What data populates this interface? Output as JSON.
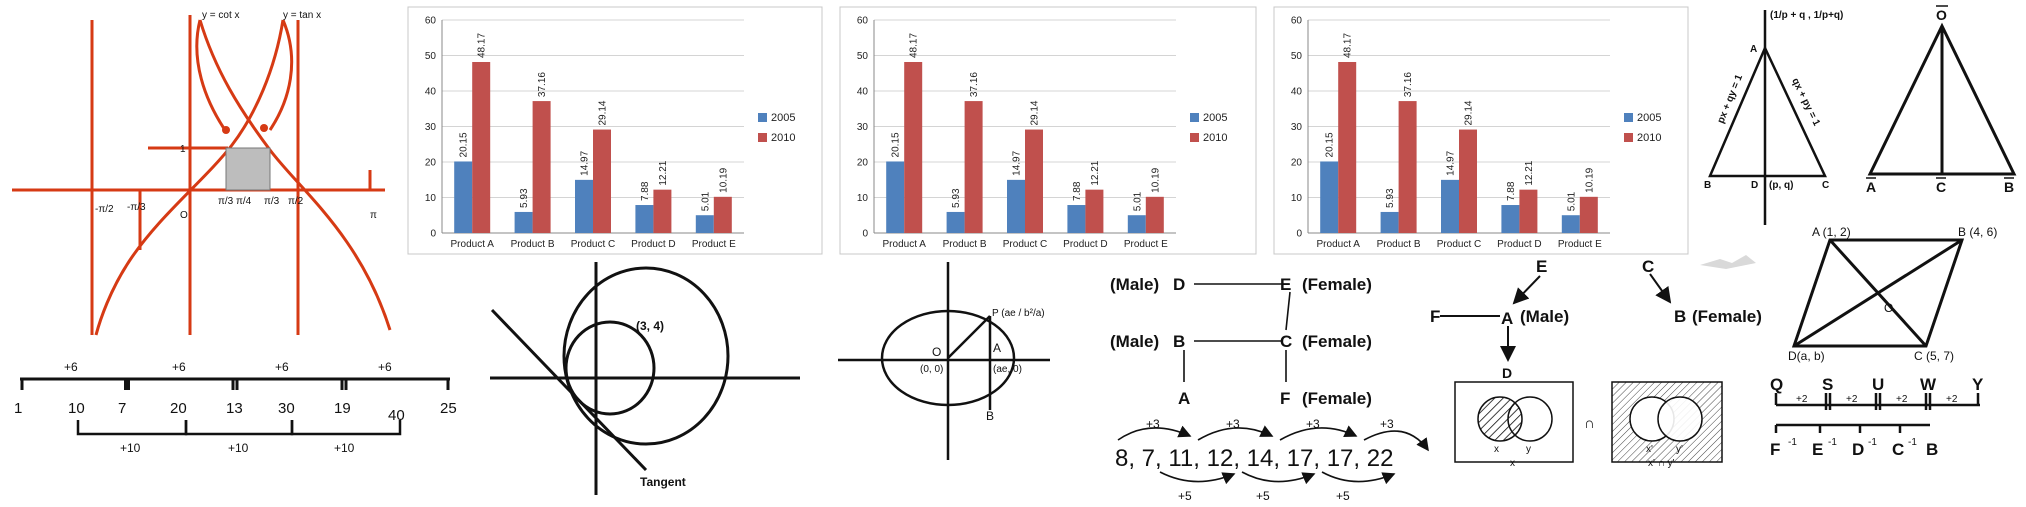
{
  "trig": {
    "label_cot": "y = cot x",
    "label_tan": "y = tan x",
    "one": "1",
    "origin": "O",
    "neg_pi2": "-π/2",
    "neg_pi3": "-π/3",
    "pi3a": "π/3",
    "pi4": "π/4",
    "pi3b": "π/3",
    "pi2": "π/2",
    "pi": "π"
  },
  "number_line": {
    "top_steps": [
      "+6",
      "+6",
      "+6",
      "+6"
    ],
    "numbers": [
      "1",
      "10",
      "7",
      "20",
      "13",
      "30",
      "19",
      "40",
      "25"
    ],
    "bottom_steps": [
      "+10",
      "+10",
      "+10"
    ]
  },
  "charts": [
    {
      "chart_data": {
        "type": "bar",
        "categories": [
          "Product A",
          "Product B",
          "Product C",
          "Product D",
          "Product E"
        ],
        "series": [
          {
            "name": "2005",
            "values": [
              20.15,
              5.93,
              14.97,
              7.88,
              5.01
            ]
          },
          {
            "name": "2010",
            "values": [
              48.17,
              37.16,
              29.14,
              12.21,
              10.19
            ]
          }
        ],
        "ylim": [
          0,
          60
        ],
        "yticks": [
          0,
          10,
          20,
          30,
          40,
          50,
          60
        ],
        "grid": true,
        "legend": "right",
        "colors": {
          "2005": "#4f81bd",
          "2010": "#c0504d"
        }
      }
    },
    {
      "chart_data": {
        "type": "bar",
        "categories": [
          "Product A",
          "Product B",
          "Product C",
          "Product D",
          "Product E"
        ],
        "series": [
          {
            "name": "2005",
            "values": [
              20.15,
              5.93,
              14.97,
              7.88,
              5.01
            ]
          },
          {
            "name": "2010",
            "values": [
              48.17,
              37.16,
              29.14,
              12.21,
              10.19
            ]
          }
        ],
        "ylim": [
          0,
          60
        ],
        "yticks": [
          0,
          10,
          20,
          30,
          40,
          50,
          60
        ],
        "grid": true,
        "legend": "right",
        "colors": {
          "2005": "#4f81bd",
          "2010": "#c0504d"
        }
      }
    },
    {
      "chart_data": {
        "type": "bar",
        "categories": [
          "Product A",
          "Product B",
          "Product C",
          "Product D",
          "Product E"
        ],
        "series": [
          {
            "name": "2005",
            "values": [
              20.15,
              5.93,
              14.97,
              7.88,
              5.01
            ]
          },
          {
            "name": "2010",
            "values": [
              48.17,
              37.16,
              29.14,
              12.21,
              10.19
            ]
          }
        ],
        "ylim": [
          0,
          60
        ],
        "yticks": [
          0,
          10,
          20,
          30,
          40,
          50,
          60
        ],
        "grid": true,
        "legend": "right",
        "colors": {
          "2005": "#4f81bd",
          "2010": "#c0504d"
        }
      }
    }
  ],
  "circles": {
    "point": "(3, 4)",
    "tangent": "Tangent"
  },
  "ellipse": {
    "p_label": "P (ae / b²/a)",
    "o": "O",
    "a": "A",
    "origin": "(0, 0)",
    "ae": "(ae, 0)",
    "b": "B"
  },
  "family": {
    "male1": "(Male)",
    "d": "D",
    "e": "E",
    "female1": "(Female)",
    "male2": "(Male)",
    "b": "B",
    "c": "C",
    "female2": "(Female)",
    "a": "A",
    "f": "F",
    "female3": "(Female)"
  },
  "series_diagram": {
    "top_steps": [
      "+3",
      "+3",
      "+3",
      "+3"
    ],
    "sequence": "8, 7, 11, 12, 14, 17, 17, 22",
    "bottom_steps": [
      "+5",
      "+5",
      "+5"
    ]
  },
  "direction": {
    "e": "E",
    "f": "F",
    "a": "A",
    "a_male": "(Male)",
    "d": "D",
    "c": "C",
    "b": "B",
    "b_female": "(Female)"
  },
  "venn": {
    "x1": "x",
    "y1": "y",
    "x1b": "x",
    "cap": "∩",
    "x2": "x'",
    "y2": "y'",
    "x2b": "x' ∩ y'"
  },
  "triangle1": {
    "point": "(1/p + q , 1/p+q)",
    "a": "A",
    "line1": "px + qy = 1",
    "line2": "qx + py = 1",
    "b": "B",
    "d": "D",
    "pq": "(p, q)",
    "c": "C"
  },
  "triangle2": {
    "o": "O",
    "a": "A",
    "c": "C",
    "b": "B"
  },
  "parallelogram": {
    "a": "A (1, 2)",
    "b": "B (4, 6)",
    "o": "O",
    "d": "D(a, b)",
    "c": "C (5, 7)"
  },
  "letters": {
    "top": [
      "Q",
      "S",
      "U",
      "W",
      "Y"
    ],
    "top_steps": [
      "+2",
      "+2",
      "+2",
      "+2"
    ],
    "bottom": [
      "F",
      "E",
      "D",
      "C",
      "B"
    ],
    "bottom_steps": [
      "-1",
      "-1",
      "-1",
      "-1"
    ]
  }
}
